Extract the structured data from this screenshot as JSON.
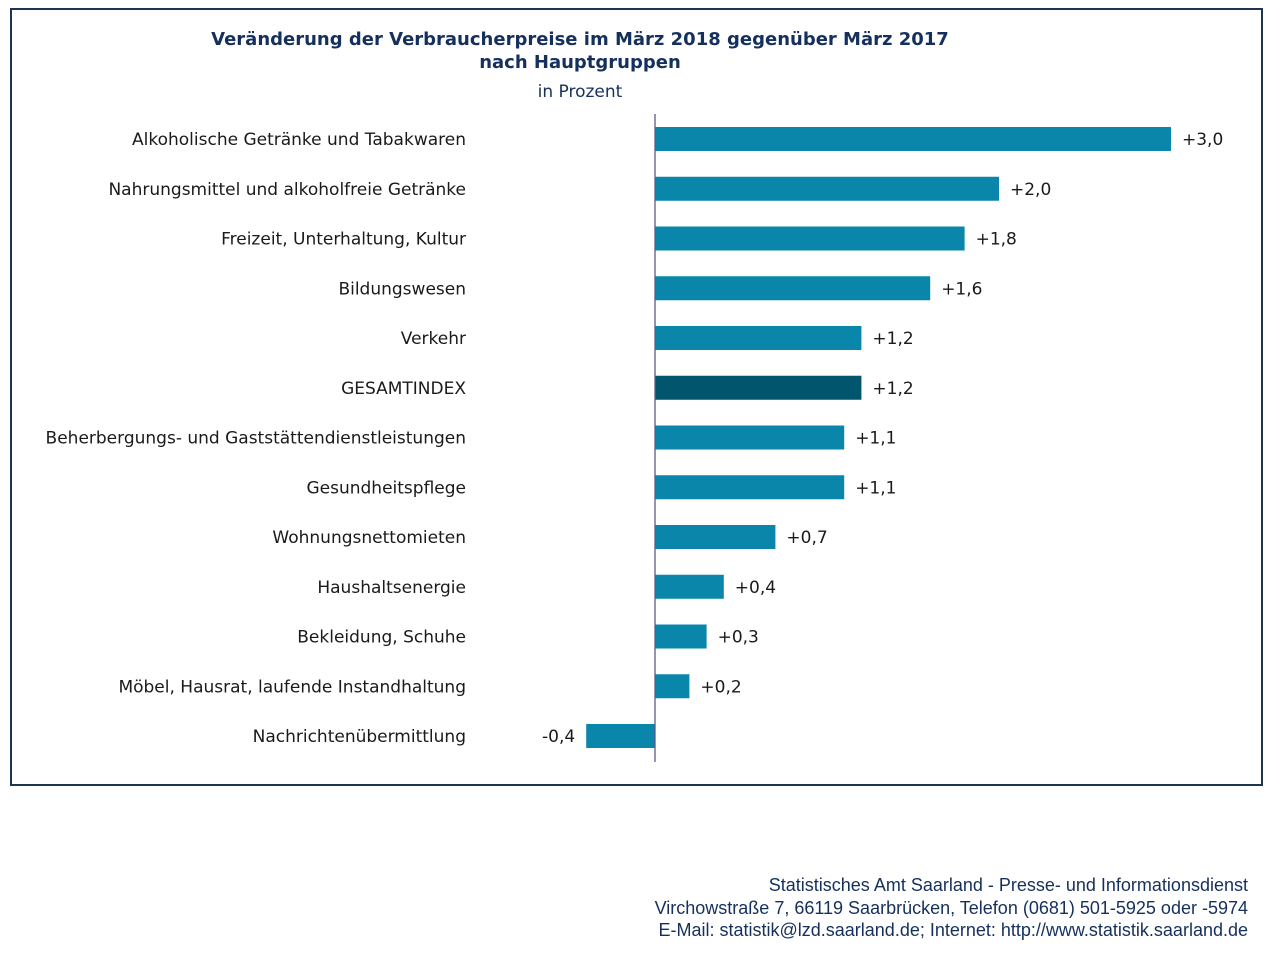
{
  "chart_data": {
    "type": "bar",
    "orientation": "horizontal",
    "title": "Veränderung der Verbraucherpreise im März 2018 gegenüber März 2017",
    "title_line2": "nach Hauptgruppen",
    "subtitle": "in Prozent",
    "categories": [
      "Alkoholische Getränke und Tabakwaren",
      "Nahrungsmittel und alkoholfreie Getränke",
      "Freizeit, Unterhaltung, Kultur",
      "Bildungswesen",
      "Verkehr",
      "GESAMTINDEX",
      "Beherbergungs- und Gaststättendienstleistungen",
      "Gesundheitspflege",
      "Wohnungsnettomieten",
      "Haushaltsenergie",
      "Bekleidung, Schuhe",
      "Möbel, Hausrat, laufende Instandhaltung",
      "Nachrichtenübermittlung"
    ],
    "values": [
      3.0,
      2.0,
      1.8,
      1.6,
      1.2,
      1.2,
      1.1,
      1.1,
      0.7,
      0.4,
      0.3,
      0.2,
      -0.4
    ],
    "value_labels": [
      "+3,0",
      "+2,0",
      "+1,8",
      "+1,6",
      "+1,2",
      "+1,2",
      "+1,1",
      "+1,1",
      "+0,7",
      "+0,4",
      "+0,3",
      "+0,2",
      "-0,4"
    ],
    "highlight_category": "GESAMTINDEX",
    "xlim": [
      -0.4,
      3.0
    ],
    "grid": false,
    "legend": "none",
    "colors": {
      "bar": "#0a86ab",
      "highlight": "#01556c",
      "axis": "#5a5a8c",
      "frame": "#1d3553",
      "title": "#15305c"
    }
  },
  "footer": {
    "line1": "Statistisches Amt Saarland - Presse- und Informationsdienst",
    "line2": "Virchowstraße 7, 66119 Saarbrücken, Telefon (0681) 501-5925 oder -5974",
    "line3": "E-Mail: statistik@lzd.saarland.de; Internet: http://www.statistik.saarland.de"
  }
}
